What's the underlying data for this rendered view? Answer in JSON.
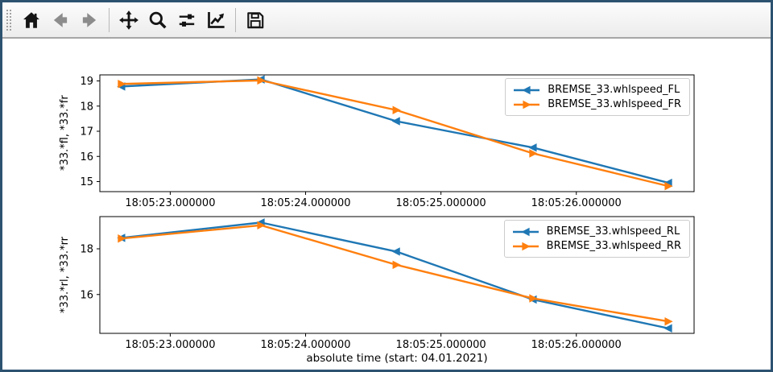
{
  "window": {
    "border_color": "#2c5270",
    "background": "#ffffff"
  },
  "toolbar": {
    "background_top": "#fcfcfc",
    "background_bottom": "#ececec",
    "divider_color": "#a6a6a6",
    "icon_color": "#141414",
    "icon_disabled_color": "#8c8c8c",
    "buttons": [
      {
        "name": "home",
        "icon": "home-icon",
        "enabled": true
      },
      {
        "name": "back",
        "icon": "arrow-left-icon",
        "enabled": false
      },
      {
        "name": "forward",
        "icon": "arrow-right-icon",
        "enabled": false
      },
      {
        "name": "pan",
        "icon": "move-arrows-icon",
        "enabled": true
      },
      {
        "name": "zoom",
        "icon": "magnifier-icon",
        "enabled": true
      },
      {
        "name": "configure-subplots",
        "icon": "sliders-icon",
        "enabled": true
      },
      {
        "name": "edit-parameters",
        "icon": "line-chart-icon",
        "enabled": true
      },
      {
        "name": "save",
        "icon": "floppy-disk-icon",
        "enabled": true
      }
    ]
  },
  "chart_data": [
    {
      "type": "line",
      "title": "",
      "xlabel": "",
      "ylabel": "*33.*fl, *33.*fr",
      "x_axis_note": "x values are seconds after 18:05:00",
      "xlim": [
        22.48,
        26.87
      ],
      "ylim": [
        14.6,
        19.24
      ],
      "y_ticks": [
        15,
        16,
        17,
        18,
        19
      ],
      "x_ticks": [
        {
          "value": 23,
          "label": "18:05:23.000000"
        },
        {
          "value": 24,
          "label": "18:05:24.000000"
        },
        {
          "value": 25,
          "label": "18:05:25.000000"
        },
        {
          "value": 26,
          "label": "18:05:26.000000"
        }
      ],
      "grid": false,
      "legend_position": "upper right",
      "series": [
        {
          "name": "BREMSE_33.whlspeed_FL",
          "color": "#1f77b4",
          "marker": "triangle-left",
          "x": [
            22.64,
            23.67,
            24.67,
            25.68,
            26.68
          ],
          "values": [
            18.78,
            19.06,
            17.4,
            16.35,
            14.95
          ]
        },
        {
          "name": "BREMSE_33.whlspeed_FR",
          "color": "#ff7f0e",
          "marker": "triangle-right",
          "x": [
            22.64,
            23.67,
            24.67,
            25.68,
            26.68
          ],
          "values": [
            18.88,
            19.02,
            17.84,
            16.12,
            14.82
          ]
        }
      ]
    },
    {
      "type": "line",
      "title": "",
      "xlabel": "absolute time (start: 04.01.2021)",
      "ylabel": "*33.*rl, *33.*rr",
      "x_axis_note": "x values are seconds after 18:05:00",
      "xlim": [
        22.48,
        26.87
      ],
      "ylim": [
        14.3,
        19.41
      ],
      "y_ticks": [
        16,
        18
      ],
      "x_ticks": [
        {
          "value": 23,
          "label": "18:05:23.000000"
        },
        {
          "value": 24,
          "label": "18:05:24.000000"
        },
        {
          "value": 25,
          "label": "18:05:25.000000"
        },
        {
          "value": 26,
          "label": "18:05:26.000000"
        }
      ],
      "grid": false,
      "legend_position": "upper right",
      "series": [
        {
          "name": "BREMSE_33.whlspeed_RL",
          "color": "#1f77b4",
          "marker": "triangle-left",
          "x": [
            22.64,
            23.67,
            24.67,
            25.68,
            26.68
          ],
          "values": [
            18.48,
            19.15,
            17.88,
            15.78,
            14.52
          ]
        },
        {
          "name": "BREMSE_33.whlspeed_RR",
          "color": "#ff7f0e",
          "marker": "triangle-right",
          "x": [
            22.64,
            23.67,
            24.67,
            25.68,
            26.68
          ],
          "values": [
            18.45,
            19.03,
            17.3,
            15.83,
            14.82
          ]
        }
      ]
    }
  ]
}
